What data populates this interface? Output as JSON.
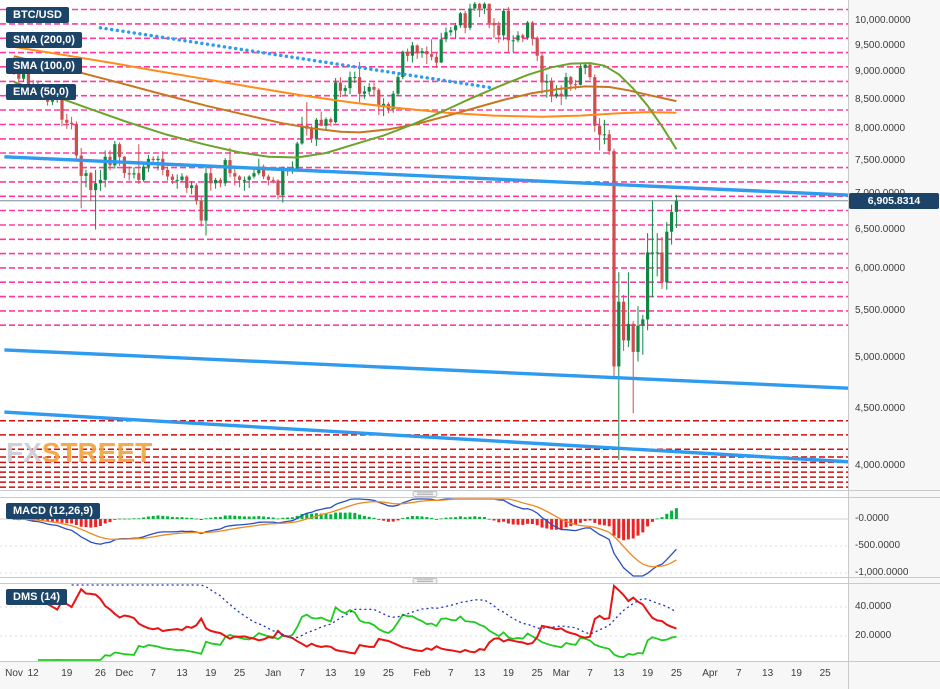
{
  "legend": {
    "symbol": "BTC/USD",
    "sma200_label": "SMA (200,0)",
    "sma100_label": "SMA (100,0)",
    "ema50_label": "EMA (50,0)"
  },
  "indicator_labels": {
    "macd": "MACD (12,26,9)",
    "dms": "DMS (14)"
  },
  "price_badge": "6,905.8314",
  "watermark": {
    "fx": "FX",
    "street": "STREET"
  },
  "chart_data": {
    "type": "candlestick",
    "symbol": "BTC/USD",
    "price_scale": "log",
    "current_price": 6905.8314,
    "y_axis_ticks": [
      {
        "label": "10,000.0000",
        "value": 10000
      },
      {
        "label": "9,500.0000",
        "value": 9500
      },
      {
        "label": "9,000.0000",
        "value": 9000
      },
      {
        "label": "8,500.0000",
        "value": 8500
      },
      {
        "label": "8,000.0000",
        "value": 8000
      },
      {
        "label": "7,500.0000",
        "value": 7500
      },
      {
        "label": "7,000.0000",
        "value": 7000
      },
      {
        "label": "6,500.0000",
        "value": 6500
      },
      {
        "label": "6,000.0000",
        "value": 6000
      },
      {
        "label": "5,500.0000",
        "value": 5500
      },
      {
        "label": "5,000.0000",
        "value": 5000
      },
      {
        "label": "4,500.0000",
        "value": 4500
      },
      {
        "label": "4,000.0000",
        "value": 4000
      }
    ],
    "x_axis_ticks": [
      {
        "label": "Nov",
        "day": 0
      },
      {
        "label": "12",
        "day": 4
      },
      {
        "label": "19",
        "day": 11
      },
      {
        "label": "26",
        "day": 18
      },
      {
        "label": "Dec",
        "day": 23
      },
      {
        "label": "7",
        "day": 29
      },
      {
        "label": "13",
        "day": 35
      },
      {
        "label": "19",
        "day": 41
      },
      {
        "label": "25",
        "day": 47
      },
      {
        "label": "Jan",
        "day": 54
      },
      {
        "label": "7",
        "day": 60
      },
      {
        "label": "13",
        "day": 66
      },
      {
        "label": "19",
        "day": 72
      },
      {
        "label": "25",
        "day": 78
      },
      {
        "label": "Feb",
        "day": 85
      },
      {
        "label": "7",
        "day": 91
      },
      {
        "label": "13",
        "day": 97
      },
      {
        "label": "19",
        "day": 103
      },
      {
        "label": "25",
        "day": 109
      },
      {
        "label": "Mar",
        "day": 114
      },
      {
        "label": "7",
        "day": 120
      },
      {
        "label": "13",
        "day": 126
      },
      {
        "label": "19",
        "day": 132
      },
      {
        "label": "25",
        "day": 138
      },
      {
        "label": "Apr",
        "day": 145
      },
      {
        "label": "7",
        "day": 151
      },
      {
        "label": "13",
        "day": 157
      },
      {
        "label": "19",
        "day": 163
      },
      {
        "label": "25",
        "day": 169
      }
    ],
    "candles_ohlc": [
      [
        9230,
        9290,
        8950,
        9010
      ],
      [
        9010,
        9060,
        8830,
        8880
      ],
      [
        8880,
        9180,
        8820,
        9110
      ],
      [
        9110,
        9130,
        8650,
        8760
      ],
      [
        8760,
        8860,
        8550,
        8700
      ],
      [
        8700,
        8820,
        8660,
        8780
      ],
      [
        8780,
        8800,
        8550,
        8630
      ],
      [
        8630,
        8760,
        8400,
        8470
      ],
      [
        8470,
        8570,
        8410,
        8510
      ],
      [
        8510,
        8620,
        8450,
        8530
      ],
      [
        8530,
        8540,
        8050,
        8160
      ],
      [
        8160,
        8260,
        8010,
        8110
      ],
      [
        8110,
        8210,
        8000,
        8090
      ],
      [
        8090,
        8130,
        7500,
        7580
      ],
      [
        7580,
        7700,
        6800,
        7270
      ],
      [
        7270,
        7360,
        7100,
        7310
      ],
      [
        7310,
        7330,
        6900,
        7060
      ],
      [
        7060,
        7360,
        6510,
        7160
      ],
      [
        7160,
        7360,
        7050,
        7210
      ],
      [
        7210,
        7660,
        7100,
        7560
      ],
      [
        7560,
        7660,
        7350,
        7430
      ],
      [
        7430,
        7810,
        7380,
        7760
      ],
      [
        7760,
        7790,
        7420,
        7560
      ],
      [
        7560,
        7570,
        7240,
        7310
      ],
      [
        7310,
        7410,
        7200,
        7290
      ],
      [
        7290,
        7400,
        7230,
        7310
      ],
      [
        7310,
        7760,
        7150,
        7210
      ],
      [
        7210,
        7490,
        7180,
        7410
      ],
      [
        7410,
        7590,
        7330,
        7530
      ],
      [
        7530,
        7570,
        7440,
        7510
      ],
      [
        7510,
        7580,
        7350,
        7530
      ],
      [
        7530,
        7650,
        7280,
        7360
      ],
      [
        7360,
        7410,
        7200,
        7260
      ],
      [
        7260,
        7300,
        7150,
        7210
      ],
      [
        7210,
        7290,
        7080,
        7210
      ],
      [
        7210,
        7310,
        7180,
        7260
      ],
      [
        7260,
        7280,
        7020,
        7090
      ],
      [
        7090,
        7190,
        7000,
        7130
      ],
      [
        7130,
        7160,
        6850,
        6910
      ],
      [
        6910,
        6960,
        6550,
        6630
      ],
      [
        6630,
        7440,
        6430,
        7310
      ],
      [
        7310,
        7390,
        7050,
        7160
      ],
      [
        7160,
        7240,
        7080,
        7210
      ],
      [
        7210,
        7240,
        7100,
        7160
      ],
      [
        7160,
        7540,
        7120,
        7510
      ],
      [
        7510,
        7700,
        7250,
        7310
      ],
      [
        7310,
        7390,
        7130,
        7260
      ],
      [
        7260,
        7280,
        7100,
        7210
      ],
      [
        7210,
        7260,
        7050,
        7210
      ],
      [
        7210,
        7280,
        7090,
        7260
      ],
      [
        7260,
        7370,
        7230,
        7310
      ],
      [
        7310,
        7530,
        7280,
        7410
      ],
      [
        7410,
        7440,
        7220,
        7260
      ],
      [
        7260,
        7290,
        7130,
        7210
      ],
      [
        7210,
        7250,
        7160,
        7200
      ],
      [
        7200,
        7220,
        6930,
        6990
      ],
      [
        6990,
        7410,
        6880,
        7360
      ],
      [
        7360,
        7410,
        7270,
        7340
      ],
      [
        7340,
        7490,
        7300,
        7380
      ],
      [
        7380,
        7800,
        7340,
        7770
      ],
      [
        7770,
        8210,
        7750,
        8060
      ],
      [
        8060,
        8460,
        7900,
        8010
      ],
      [
        8010,
        8060,
        7780,
        7850
      ],
      [
        7850,
        8190,
        7730,
        8160
      ],
      [
        8160,
        8300,
        8050,
        8060
      ],
      [
        8060,
        8200,
        8000,
        8170
      ],
      [
        8170,
        8200,
        8050,
        8120
      ],
      [
        8120,
        8890,
        8100,
        8810
      ],
      [
        8810,
        8910,
        8550,
        8660
      ],
      [
        8660,
        8760,
        8580,
        8710
      ],
      [
        8710,
        9010,
        8600,
        8910
      ],
      [
        8910,
        9010,
        8800,
        8910
      ],
      [
        8910,
        9190,
        8460,
        8610
      ],
      [
        8610,
        8750,
        8520,
        8650
      ],
      [
        8650,
        8800,
        8590,
        8730
      ],
      [
        8730,
        8810,
        8560,
        8680
      ],
      [
        8680,
        8710,
        8240,
        8390
      ],
      [
        8390,
        8530,
        8220,
        8430
      ],
      [
        8430,
        8460,
        8270,
        8340
      ],
      [
        8340,
        8660,
        8280,
        8610
      ],
      [
        8610,
        9000,
        8560,
        8910
      ],
      [
        8910,
        9410,
        8870,
        9390
      ],
      [
        9390,
        9450,
        9200,
        9310
      ],
      [
        9310,
        9580,
        9180,
        9510
      ],
      [
        9510,
        9530,
        9250,
        9360
      ],
      [
        9360,
        9460,
        9270,
        9400
      ],
      [
        9400,
        9490,
        9150,
        9340
      ],
      [
        9340,
        9630,
        9220,
        9290
      ],
      [
        9290,
        9360,
        9080,
        9180
      ],
      [
        9180,
        9760,
        9170,
        9630
      ],
      [
        9630,
        9870,
        9570,
        9770
      ],
      [
        9770,
        9880,
        9700,
        9810
      ],
      [
        9810,
        9960,
        9650,
        9910
      ],
      [
        9910,
        10190,
        9860,
        10160
      ],
      [
        10160,
        10210,
        9750,
        9860
      ],
      [
        9860,
        10360,
        9810,
        10260
      ],
      [
        10260,
        10400,
        10210,
        10360
      ],
      [
        10360,
        10380,
        10080,
        10260
      ],
      [
        10260,
        10390,
        10150,
        10360
      ],
      [
        10360,
        10370,
        9850,
        9960
      ],
      [
        9960,
        10060,
        9660,
        9910
      ],
      [
        9910,
        9990,
        9560,
        9710
      ],
      [
        9710,
        10260,
        9610,
        10210
      ],
      [
        10210,
        10290,
        9390,
        9610
      ],
      [
        9610,
        9710,
        9380,
        9610
      ],
      [
        9610,
        9790,
        9570,
        9710
      ],
      [
        9710,
        9740,
        9570,
        9660
      ],
      [
        9660,
        10000,
        9620,
        9970
      ],
      [
        9970,
        10000,
        9510,
        9660
      ],
      [
        9660,
        9690,
        9210,
        9310
      ],
      [
        9310,
        9360,
        8610,
        8810
      ],
      [
        8810,
        8960,
        8540,
        8840
      ],
      [
        8840,
        8900,
        8460,
        8560
      ],
      [
        8560,
        8760,
        8530,
        8610
      ],
      [
        8610,
        8760,
        8410,
        8560
      ],
      [
        8560,
        8990,
        8510,
        8910
      ],
      [
        8910,
        8930,
        8660,
        8780
      ],
      [
        8780,
        8860,
        8680,
        8770
      ],
      [
        8770,
        9180,
        8760,
        9080
      ],
      [
        9080,
        9160,
        8960,
        9140
      ],
      [
        9140,
        9190,
        8860,
        8910
      ],
      [
        8910,
        8960,
        7960,
        8060
      ],
      [
        8060,
        8190,
        7660,
        7910
      ],
      [
        7910,
        8160,
        7760,
        7920
      ],
      [
        7920,
        7990,
        7590,
        7650
      ],
      [
        7650,
        7690,
        4810,
        4910
      ],
      [
        4910,
        5960,
        4050,
        5610
      ],
      [
        5610,
        5690,
        5070,
        5180
      ],
      [
        5180,
        5960,
        5110,
        5360
      ],
      [
        5360,
        5390,
        4460,
        5060
      ],
      [
        5060,
        5560,
        4960,
        5340
      ],
      [
        5340,
        5460,
        5030,
        5410
      ],
      [
        5410,
        6460,
        5290,
        6210
      ],
      [
        6210,
        6910,
        5660,
        6210
      ],
      [
        6210,
        6460,
        5910,
        6210
      ],
      [
        6210,
        6410,
        5760,
        5840
      ],
      [
        5840,
        6610,
        5750,
        6480
      ],
      [
        6480,
        6850,
        6310,
        6750
      ],
      [
        6750,
        6990,
        6530,
        6906
      ]
    ],
    "overlays": {
      "sma200": {
        "label": "SMA (200,0)",
        "color": "#ff8c1a",
        "points": [
          [
            0,
            9480
          ],
          [
            10,
            9330
          ],
          [
            20,
            9180
          ],
          [
            30,
            9020
          ],
          [
            40,
            8870
          ],
          [
            50,
            8720
          ],
          [
            60,
            8580
          ],
          [
            70,
            8460
          ],
          [
            80,
            8360
          ],
          [
            90,
            8280
          ],
          [
            100,
            8230
          ],
          [
            110,
            8210
          ],
          [
            118,
            8230
          ],
          [
            126,
            8270
          ],
          [
            132,
            8290
          ],
          [
            138,
            8280
          ]
        ]
      },
      "sma100": {
        "label": "SMA (100,0)",
        "color": "#c8761f",
        "points": [
          [
            0,
            9300
          ],
          [
            10,
            9080
          ],
          [
            20,
            8850
          ],
          [
            30,
            8620
          ],
          [
            40,
            8400
          ],
          [
            50,
            8210
          ],
          [
            56,
            8100
          ],
          [
            62,
            8020
          ],
          [
            68,
            7960
          ],
          [
            72,
            7950
          ],
          [
            78,
            8000
          ],
          [
            84,
            8090
          ],
          [
            90,
            8220
          ],
          [
            96,
            8360
          ],
          [
            102,
            8500
          ],
          [
            108,
            8620
          ],
          [
            114,
            8700
          ],
          [
            119,
            8740
          ],
          [
            124,
            8730
          ],
          [
            128,
            8670
          ],
          [
            132,
            8590
          ],
          [
            138,
            8480
          ]
        ]
      },
      "ema50": {
        "label": "EMA (50,0)",
        "color": "#6aa42c",
        "points": [
          [
            0,
            8820
          ],
          [
            8,
            8580
          ],
          [
            16,
            8340
          ],
          [
            24,
            8110
          ],
          [
            32,
            7910
          ],
          [
            40,
            7750
          ],
          [
            47,
            7630
          ],
          [
            53,
            7560
          ],
          [
            59,
            7550
          ],
          [
            65,
            7620
          ],
          [
            71,
            7760
          ],
          [
            77,
            7900
          ],
          [
            83,
            8080
          ],
          [
            89,
            8290
          ],
          [
            95,
            8520
          ],
          [
            101,
            8740
          ],
          [
            107,
            8950
          ],
          [
            112,
            9090
          ],
          [
            116,
            9160
          ],
          [
            120,
            9170
          ],
          [
            123,
            9120
          ],
          [
            126,
            8960
          ],
          [
            129,
            8700
          ],
          [
            132,
            8400
          ],
          [
            135,
            8050
          ],
          [
            138,
            7680
          ]
        ]
      }
    },
    "trendlines": [
      {
        "style": "dotted",
        "from_day": 18,
        "from_price": 9860,
        "to_day": 100,
        "to_price": 8710
      },
      {
        "style": "solid",
        "from_day": -2,
        "from_price": 7560,
        "to_day": 176,
        "to_price": 6980
      },
      {
        "style": "solid",
        "from_day": -2,
        "from_price": 5080,
        "to_day": 176,
        "to_price": 4690
      },
      {
        "style": "solid",
        "from_day": -2,
        "from_price": 4470,
        "to_day": 176,
        "to_price": 4030
      }
    ],
    "pink_levels": [
      10240,
      9940,
      9650,
      9370,
      9100,
      8830,
      8575,
      8325,
      8080,
      7845,
      7620,
      7395,
      7180,
      6970,
      6770,
      6570,
      6380,
      6195,
      6015,
      5840,
      5670,
      5505,
      5345
    ],
    "red_levels": [
      4390,
      4265,
      4140,
      4075,
      4030,
      3990,
      3950,
      3910,
      3870,
      3830
    ],
    "macd": {
      "label": "MACD (12,26,9)",
      "params": [
        12,
        26,
        9
      ],
      "axis_ticks": [
        {
          "label": "-0.0000",
          "value": 0
        },
        {
          "label": "-500.0000",
          "value": -500
        },
        {
          "label": "-1,000.0000",
          "value": -1000
        }
      ],
      "colors": {
        "macd_line": "#2b4fc2",
        "signal_line": "#ee8822",
        "hist_up": "#00b33c",
        "hist_down": "#ee2222"
      }
    },
    "dms": {
      "label": "DMS (14)",
      "period": 14,
      "axis_ticks": [
        {
          "label": "40.0000",
          "value": 40
        },
        {
          "label": "20.0000",
          "value": 20
        }
      ],
      "colors": {
        "plus_di": "#1ecb1e",
        "minus_di": "#e81414",
        "adx": "#2233bb"
      }
    },
    "colors": {
      "candle_up": "#0e8742",
      "candle_down": "#cd4e4e",
      "trendline": "#2e9bf0",
      "pink_level": "#ff3ba0",
      "red_level": "#cc0f0f",
      "current_price_line": "#7f8c99"
    }
  }
}
